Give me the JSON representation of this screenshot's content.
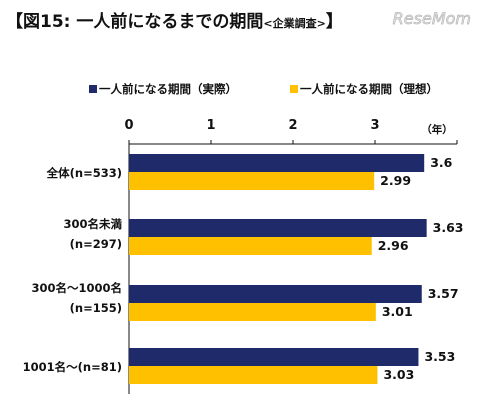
{
  "header": {
    "title": "【図15:  一人前になるまでの期間",
    "subtitle": "<企業調査>",
    "title_close": "】",
    "watermark": "ReseMom"
  },
  "chart_data": {
    "type": "bar",
    "orientation": "horizontal",
    "categories": [
      "全体(n=533)",
      "300名未満\n(n=297)",
      "300名～1000名\n(n=155)",
      "1001名～(n=81)"
    ],
    "series": [
      {
        "name": "一人前になる期間（実際）",
        "values": [
          3.6,
          3.63,
          3.57,
          3.53
        ],
        "color": "#1f2a6b"
      },
      {
        "name": "一人前になる期間（理想）",
        "values": [
          2.99,
          2.96,
          3.01,
          3.03
        ],
        "color": "#ffc000"
      }
    ],
    "value_labels": [
      [
        "3.6",
        "3.63",
        "3.57",
        "3.53"
      ],
      [
        "2.99",
        "2.96",
        "3.01",
        "3.03"
      ]
    ],
    "x_ticks": [
      "0",
      "1",
      "2",
      "3"
    ],
    "x_unit": "（年）",
    "xlim": [
      0,
      4
    ],
    "legend_position": "top",
    "grid": false
  }
}
